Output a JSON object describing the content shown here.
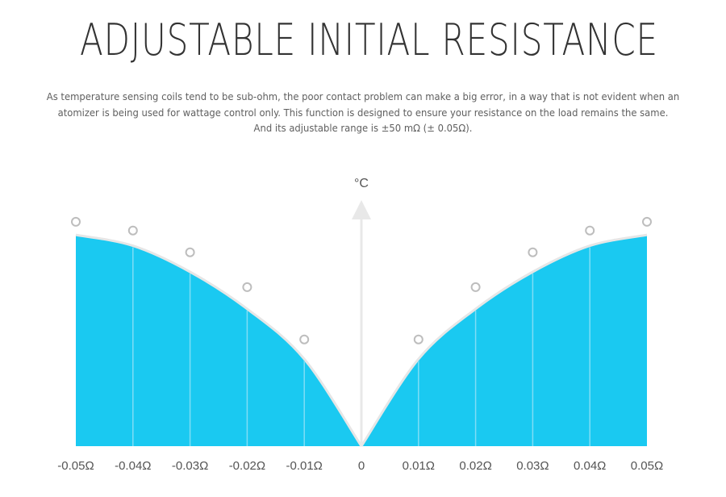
{
  "title": "ADJUSTABLE INITIAL RESISTANCE",
  "description": [
    "As temperature sensing coils tend to be sub-ohm, the poor contact problem can make a big error, in a way that is not evident when an",
    "atomizer is being used for wattage control only. This function is designed to ensure your resistance on the load remains the same.",
    "And its adjustable range is ±50 mΩ (± 0.05Ω)."
  ],
  "chart_data": {
    "type": "area",
    "y_axis_label": "°C",
    "x_tick_labels": [
      "-0.05Ω",
      "-0.04Ω",
      "-0.03Ω",
      "-0.02Ω",
      "-0.01Ω",
      "0",
      "0.01Ω",
      "0.02Ω",
      "0.03Ω",
      "0.04Ω",
      "0.05Ω"
    ],
    "x": [
      -0.05,
      -0.04,
      -0.03,
      -0.02,
      -0.01,
      0,
      0.01,
      0.02,
      0.03,
      0.04,
      0.05
    ],
    "xlim": [
      -0.05,
      0.05
    ],
    "ylim": [
      0,
      1
    ],
    "y_values_relative": [
      0.97,
      0.92,
      0.8,
      0.63,
      0.4,
      0,
      0.4,
      0.63,
      0.8,
      0.92,
      0.97
    ],
    "marker_points": {
      "left_x": [
        -0.05,
        -0.04,
        -0.03,
        -0.02,
        -0.01
      ],
      "left_y": [
        1.03,
        0.99,
        0.89,
        0.73,
        0.49
      ],
      "right_x": [
        0.01,
        0.02,
        0.03,
        0.04,
        0.05
      ],
      "right_y": [
        0.49,
        0.73,
        0.89,
        0.99,
        1.03
      ]
    },
    "grid": false,
    "legend": "none",
    "colors": {
      "fill": "#1AC9F1",
      "curve_stroke": "#E6E6E6",
      "divider": "#7FDDF5",
      "axis": "#E8E8E8",
      "marker": "#BDBDBD",
      "label": "#555555"
    }
  }
}
